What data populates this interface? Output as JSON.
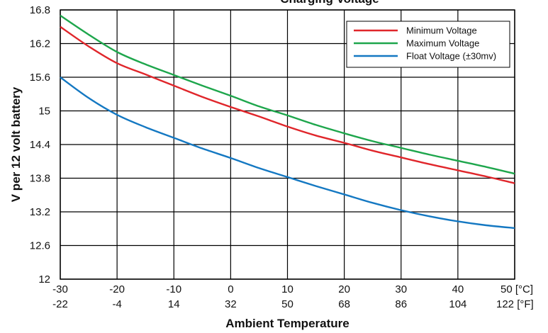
{
  "chart_data": {
    "type": "line",
    "title": "Charging Voltage",
    "xlabel": "Ambient Temperature",
    "ylabel": "V per 12 volt battery",
    "x": [
      -30,
      -25,
      -20,
      -15,
      -10,
      -5,
      0,
      5,
      10,
      15,
      20,
      25,
      30,
      35,
      40,
      45,
      50
    ],
    "x_ticks_c": [
      "-30",
      "-20",
      "-10",
      "0",
      "10",
      "20",
      "30",
      "40",
      "50 [°C]"
    ],
    "x_ticks_f": [
      "-22",
      "-4",
      "14",
      "32",
      "50",
      "68",
      "86",
      "104",
      "122 [°F]"
    ],
    "y_ticks": [
      "12",
      "12.6",
      "13.2",
      "13.8",
      "14.4",
      "15",
      "15.6",
      "16.2",
      "16.8"
    ],
    "xlim": [
      -30,
      50
    ],
    "ylim": [
      12,
      16.8
    ],
    "grid": true,
    "legend_position": "top-right",
    "series": [
      {
        "name": "Minimum Voltage",
        "color": "#e0262b",
        "values": [
          16.5,
          16.15,
          15.85,
          15.65,
          15.45,
          15.25,
          15.07,
          14.9,
          14.72,
          14.56,
          14.43,
          14.29,
          14.17,
          14.05,
          13.94,
          13.83,
          13.71
        ]
      },
      {
        "name": "Maximum Voltage",
        "color": "#1ea64c",
        "values": [
          16.7,
          16.36,
          16.05,
          15.83,
          15.64,
          15.45,
          15.27,
          15.08,
          14.92,
          14.75,
          14.6,
          14.46,
          14.34,
          14.22,
          14.11,
          14.0,
          13.88
        ]
      },
      {
        "name": "Float Voltage (±30mv)",
        "color": "#1478c2",
        "values": [
          15.6,
          15.23,
          14.93,
          14.71,
          14.52,
          14.33,
          14.16,
          13.98,
          13.82,
          13.66,
          13.51,
          13.36,
          13.23,
          13.12,
          13.03,
          12.96,
          12.91
        ]
      }
    ]
  }
}
